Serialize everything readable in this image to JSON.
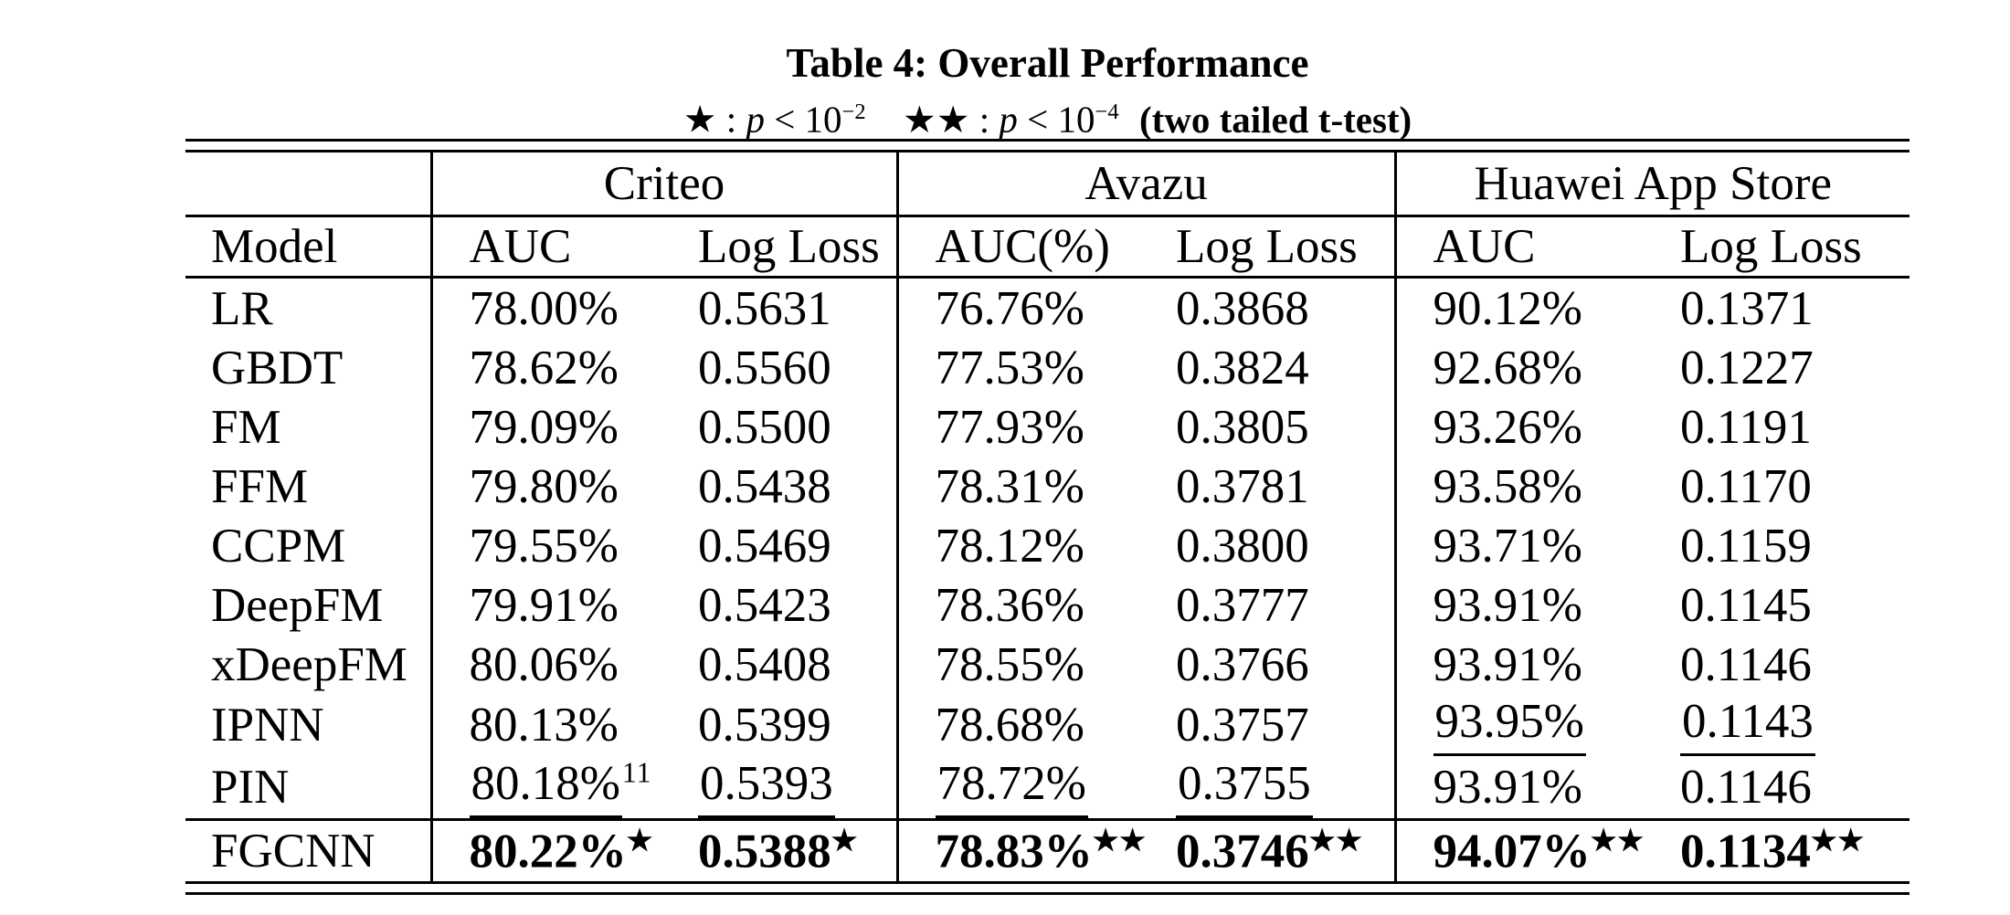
{
  "colors": {
    "ink": "#000000",
    "background": "#ffffff"
  },
  "caption": {
    "title": "Table 4: Overall Performance",
    "legend": {
      "s1": "★ :",
      "p": "p",
      "rel": "< 10",
      "e1": "−2",
      "s2": "★★ :",
      "e2": "−4",
      "tail": "(two tailed t-test)"
    }
  },
  "table": {
    "model_header": "Model",
    "groups": [
      "Criteo",
      "Avazu",
      "Huawei App Store"
    ],
    "columns": [
      "AUC",
      "Log Loss",
      "AUC(%)",
      "Log Loss",
      "AUC",
      "Log Loss"
    ],
    "rows": [
      {
        "model": "LR",
        "cells": [
          {
            "text": "78.00%"
          },
          {
            "text": "0.5631"
          },
          {
            "text": "76.76%"
          },
          {
            "text": "0.3868"
          },
          {
            "text": "90.12%"
          },
          {
            "text": "0.1371"
          }
        ]
      },
      {
        "model": "GBDT",
        "cells": [
          {
            "text": "78.62%"
          },
          {
            "text": "0.5560"
          },
          {
            "text": "77.53%"
          },
          {
            "text": "0.3824"
          },
          {
            "text": "92.68%"
          },
          {
            "text": "0.1227"
          }
        ]
      },
      {
        "model": "FM",
        "cells": [
          {
            "text": "79.09%"
          },
          {
            "text": "0.5500"
          },
          {
            "text": "77.93%"
          },
          {
            "text": "0.3805"
          },
          {
            "text": "93.26%"
          },
          {
            "text": "0.1191"
          }
        ]
      },
      {
        "model": "FFM",
        "cells": [
          {
            "text": "79.80%"
          },
          {
            "text": "0.5438"
          },
          {
            "text": "78.31%"
          },
          {
            "text": "0.3781"
          },
          {
            "text": "93.58%"
          },
          {
            "text": "0.1170"
          }
        ]
      },
      {
        "model": "CCPM",
        "cells": [
          {
            "text": "79.55%"
          },
          {
            "text": "0.5469"
          },
          {
            "text": "78.12%"
          },
          {
            "text": "0.3800"
          },
          {
            "text": "93.71%"
          },
          {
            "text": "0.1159"
          }
        ]
      },
      {
        "model": "DeepFM",
        "cells": [
          {
            "text": "79.91%"
          },
          {
            "text": "0.5423"
          },
          {
            "text": "78.36%"
          },
          {
            "text": "0.3777"
          },
          {
            "text": "93.91%"
          },
          {
            "text": "0.1145"
          }
        ]
      },
      {
        "model": "xDeepFM",
        "cells": [
          {
            "text": "80.06%"
          },
          {
            "text": "0.5408"
          },
          {
            "text": "78.55%"
          },
          {
            "text": "0.3766"
          },
          {
            "text": "93.91%"
          },
          {
            "text": "0.1146"
          }
        ]
      },
      {
        "model": "IPNN",
        "cells": [
          {
            "text": "80.13%"
          },
          {
            "text": "0.5399"
          },
          {
            "text": "78.68%"
          },
          {
            "text": "0.3757"
          },
          {
            "text": "93.95%",
            "underline": true
          },
          {
            "text": "0.1143",
            "underline": true
          }
        ]
      },
      {
        "model": "PIN",
        "cells": [
          {
            "text": "80.18%",
            "underline": true,
            "sup": "11"
          },
          {
            "text": "0.5393",
            "underline": true
          },
          {
            "text": "78.72%",
            "underline": true
          },
          {
            "text": "0.3755",
            "underline": true
          },
          {
            "text": "93.91%"
          },
          {
            "text": "0.1146"
          }
        ]
      },
      {
        "model": "FGCNN",
        "top_rule": true,
        "cells": [
          {
            "text": "80.22%",
            "bold": true,
            "sup": "★"
          },
          {
            "text": "0.5388",
            "bold": true,
            "sup": "★"
          },
          {
            "text": "78.83%",
            "bold": true,
            "sup": "★★"
          },
          {
            "text": "0.3746",
            "bold": true,
            "sup": "★★"
          },
          {
            "text": "94.07%",
            "bold": true,
            "sup": "★★"
          },
          {
            "text": "0.1134",
            "bold": true,
            "sup": "★★"
          }
        ]
      }
    ]
  }
}
